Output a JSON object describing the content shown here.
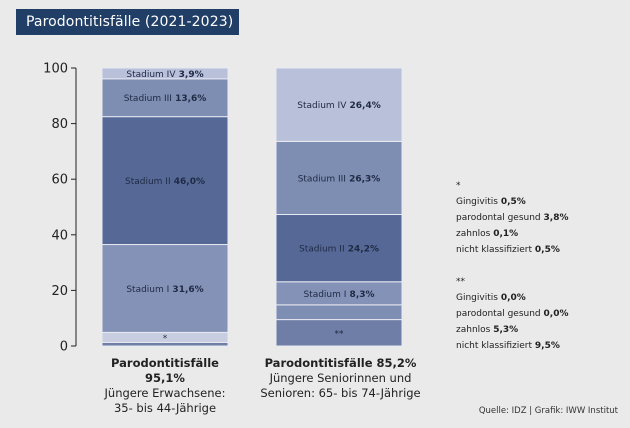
{
  "title": "Parodontitisfälle (2021-2023)",
  "colors": {
    "title_bg": "#203e66",
    "stadium_iv": "#b9c0da",
    "stadium_iii": "#7e8db2",
    "stadium_ii": "#566996",
    "stadium_i": "#8492b7",
    "other": "#c9cde0",
    "other2": "#6f7ea6"
  },
  "chart_data": {
    "type": "bar",
    "stacked": true,
    "ylim": [
      0,
      100
    ],
    "yticks": [
      "0",
      "20",
      "40",
      "60",
      "80",
      "100"
    ],
    "categories": [
      {
        "head_label": "Parodontitisfälle",
        "head_value": "95,1%",
        "line2": "Jüngere Erwachsene:",
        "line3": "35- bis 44-Jährige",
        "segments": [
          {
            "key": "other",
            "label": "",
            "value_text": "",
            "value": 1.3,
            "color_key": "other2"
          },
          {
            "key": "marker",
            "label": "*",
            "value_text": "",
            "value": 3.6,
            "color_key": "other"
          },
          {
            "key": "stadium_i",
            "label": "Stadium I",
            "value_text": "31,6%",
            "value": 31.6,
            "color_key": "stadium_i"
          },
          {
            "key": "stadium_ii",
            "label": "Stadium II",
            "value_text": "46,0%",
            "value": 46.0,
            "color_key": "stadium_ii"
          },
          {
            "key": "stadium_iii",
            "label": "Stadium III",
            "value_text": "13,6%",
            "value": 13.6,
            "color_key": "stadium_iii"
          },
          {
            "key": "stadium_iv",
            "label": "Stadium IV",
            "value_text": "3,9%",
            "value": 3.9,
            "color_key": "stadium_iv"
          }
        ]
      },
      {
        "head_label": "Parodontitisfälle",
        "head_value": "85,2%",
        "line2": "Jüngere Seniorinnen und",
        "line3": "Senioren: 65- bis 74-Jährige",
        "segments": [
          {
            "key": "marker",
            "label": "**",
            "value_text": "",
            "value": 9.5,
            "color_key": "other2"
          },
          {
            "key": "other",
            "label": "",
            "value_text": "",
            "value": 5.3,
            "color_key": "stadium_iii"
          },
          {
            "key": "stadium_i",
            "label": "Stadium I",
            "value_text": "8,3%",
            "value": 8.3,
            "color_key": "stadium_i"
          },
          {
            "key": "stadium_ii",
            "label": "Stadium II",
            "value_text": "24,2%",
            "value": 24.2,
            "color_key": "stadium_ii"
          },
          {
            "key": "stadium_iii",
            "label": "Stadium III",
            "value_text": "26,3%",
            "value": 26.3,
            "color_key": "stadium_iii"
          },
          {
            "key": "stadium_iv",
            "label": "Stadium IV",
            "value_text": "26,4%",
            "value": 26.4,
            "color_key": "stadium_iv"
          }
        ]
      }
    ]
  },
  "notes": [
    {
      "marker": "*",
      "rows": [
        {
          "label": "Gingivitis",
          "value": "0,5%"
        },
        {
          "label": "parodontal gesund",
          "value": "3,8%"
        },
        {
          "label": "zahnlos",
          "value": "0,1%"
        },
        {
          "label": "nicht klassifiziert",
          "value": "0,5%"
        }
      ]
    },
    {
      "marker": "**",
      "rows": [
        {
          "label": "Gingivitis",
          "value": "0,0%"
        },
        {
          "label": "parodontal gesund",
          "value": "0,0%"
        },
        {
          "label": "zahnlos",
          "value": "5,3%"
        },
        {
          "label": "nicht klassifiziert",
          "value": "9,5%"
        }
      ]
    }
  ],
  "source": "Quelle: IDZ | Grafik: IWW Institut"
}
